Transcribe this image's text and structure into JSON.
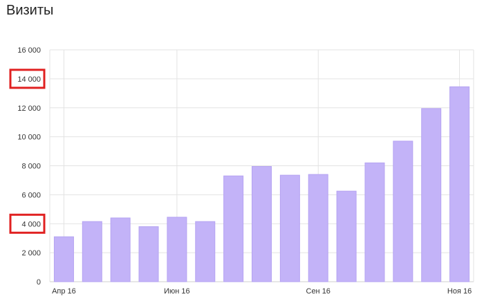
{
  "chart_data": {
    "type": "bar",
    "title": "Визиты",
    "xlabel": "",
    "ylabel": "",
    "ylim": [
      0,
      16000
    ],
    "yticks": [
      {
        "value": 0,
        "label": "0"
      },
      {
        "value": 2000,
        "label": "2 000"
      },
      {
        "value": 4000,
        "label": "4 000"
      },
      {
        "value": 6000,
        "label": "6 000"
      },
      {
        "value": 8000,
        "label": "8 000"
      },
      {
        "value": 10000,
        "label": "10 000"
      },
      {
        "value": 12000,
        "label": "12 000"
      },
      {
        "value": 14000,
        "label": "14 000"
      },
      {
        "value": 16000,
        "label": "16 000"
      }
    ],
    "values": [
      3100,
      4150,
      4400,
      3800,
      4450,
      4150,
      7300,
      7950,
      7350,
      7400,
      6250,
      8200,
      9700,
      11950,
      13450
    ],
    "xtick_labels": [
      {
        "index": 0,
        "label": "Апр 16"
      },
      {
        "index": 4,
        "label": "Июн 16"
      },
      {
        "index": 9,
        "label": "Сен 16"
      },
      {
        "index": 14,
        "label": "Ноя 16"
      }
    ],
    "highlighted_ticks": [
      14000,
      4000
    ],
    "colors": {
      "bar": "#c3b3f8",
      "bar_stroke": "#b5a3f2",
      "grid": "#e3e3e3",
      "highlight": "#e02020"
    },
    "grid": true,
    "legend": "none"
  }
}
